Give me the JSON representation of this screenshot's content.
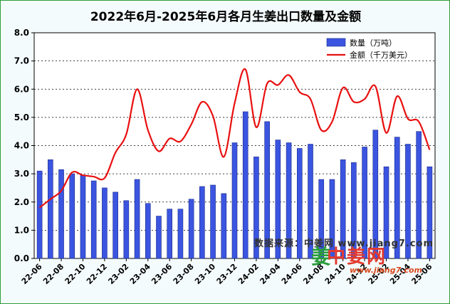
{
  "chart_data": {
    "type": "bar+line",
    "title": "2022年6月-2025年6月各月生姜出口数量及金额",
    "x": [
      "22-06",
      "22-07",
      "22-08",
      "22-09",
      "22-10",
      "22-11",
      "22-12",
      "23-01",
      "23-02",
      "23-03",
      "23-04",
      "23-05",
      "23-06",
      "23-07",
      "23-08",
      "23-09",
      "23-10",
      "23-11",
      "23-12",
      "24-01",
      "24-02",
      "24-03",
      "24-04",
      "24-05",
      "24-06",
      "24-07",
      "24-08",
      "24-09",
      "24-10",
      "24-11",
      "24-12",
      "25-01",
      "25-02",
      "25-03",
      "25-04",
      "25-05",
      "25-06"
    ],
    "x_tick_labels": [
      "22-06",
      "22-08",
      "22-10",
      "22-12",
      "23-02",
      "23-04",
      "23-06",
      "23-08",
      "23-10",
      "23-12",
      "24-02",
      "24-04",
      "24-06",
      "24-08",
      "24-10",
      "24-12",
      "25-02",
      "25-04",
      "25-06"
    ],
    "ylim": [
      0,
      8
    ],
    "y_ticks": [
      "0.0",
      "1.0",
      "2.0",
      "3.0",
      "4.0",
      "5.0",
      "6.0",
      "7.0",
      "8.0"
    ],
    "grid": true,
    "legend_position": "top-right",
    "series": [
      {
        "name": "数量（万吨）",
        "kind": "bar",
        "color": "#3b55e0",
        "values": [
          3.1,
          3.5,
          3.15,
          3.0,
          2.95,
          2.75,
          2.5,
          2.35,
          2.05,
          2.8,
          1.95,
          1.5,
          1.75,
          1.75,
          2.1,
          2.55,
          2.6,
          2.3,
          4.1,
          5.2,
          3.6,
          4.85,
          4.2,
          4.1,
          3.9,
          4.05,
          2.8,
          2.8,
          3.5,
          3.4,
          3.95,
          4.55,
          3.25,
          4.3,
          4.05,
          4.5,
          3.25
        ]
      },
      {
        "name": "金额（千万美元）",
        "kind": "line",
        "color": "#e81010",
        "values": [
          1.8,
          2.1,
          2.4,
          3.05,
          2.95,
          2.9,
          2.85,
          3.75,
          4.4,
          6.0,
          4.55,
          3.8,
          4.25,
          4.15,
          4.75,
          5.55,
          5.05,
          3.6,
          5.5,
          6.7,
          4.65,
          6.2,
          6.15,
          6.5,
          5.9,
          5.65,
          4.55,
          4.85,
          6.05,
          5.55,
          5.65,
          6.1,
          4.45,
          5.75,
          4.95,
          4.85,
          3.85
        ]
      }
    ]
  },
  "watermark": {
    "source_label": "数据来源：中姜网 www.jiang7.com",
    "logo_mark": "姜",
    "logo_text": "中姜网",
    "logo_url": "www.jiang7.com"
  }
}
